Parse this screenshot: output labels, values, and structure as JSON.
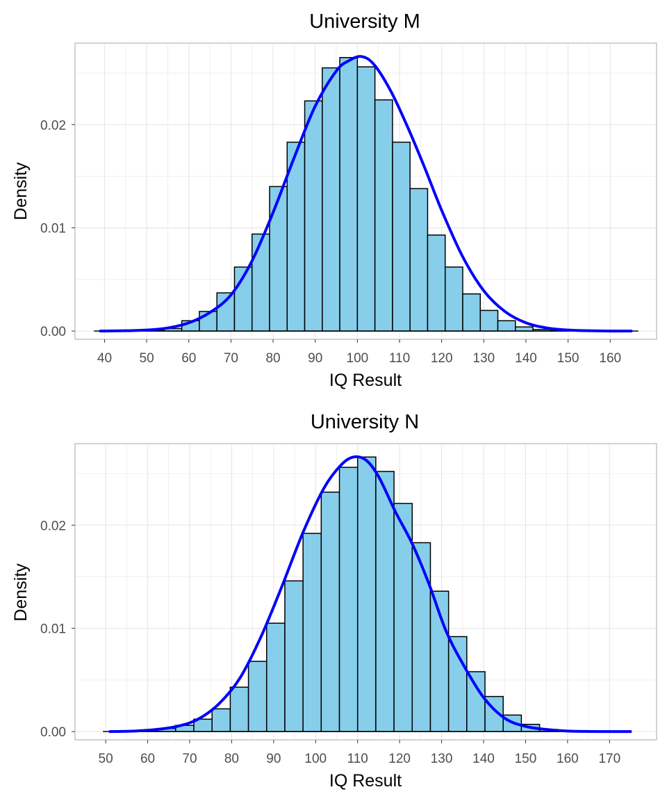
{
  "colors": {
    "bar_fill": "#87ceeb",
    "bar_stroke": "#000000",
    "density_line": "#0000ff",
    "grid": "#e6e6e6",
    "panel_border": "#b3b3b3",
    "tick_text": "#4d4d4d"
  },
  "chart_data": [
    {
      "type": "bar",
      "subtype": "histogram-with-density",
      "title": "University M",
      "xlabel": "IQ Result",
      "ylabel": "Density",
      "xlim": [
        33,
        171
      ],
      "ylim": [
        -0.0008,
        0.0279
      ],
      "x_ticks": [
        40,
        50,
        60,
        70,
        80,
        90,
        100,
        110,
        120,
        130,
        140,
        150,
        160
      ],
      "x_tick_labels": [
        "40",
        "50",
        "60",
        "70",
        "80",
        "90",
        "100",
        "110",
        "120",
        "130",
        "140",
        "150",
        "160"
      ],
      "y_ticks": [
        0,
        0.01,
        0.02
      ],
      "y_tick_labels": [
        "0.00",
        "0.01",
        "0.02"
      ],
      "grid": true,
      "bins": {
        "left_edges": [
          37.5,
          41.667,
          45.833,
          50.0,
          54.167,
          58.333,
          62.5,
          66.667,
          70.833,
          75.0,
          79.167,
          83.333,
          87.5,
          91.667,
          95.833,
          100.0,
          104.167,
          108.333,
          112.5,
          116.667,
          120.833,
          125.0,
          129.167,
          133.333,
          137.5,
          141.667,
          145.833,
          150.0,
          154.167,
          158.333,
          162.5
        ],
        "width": 4.1667,
        "values": [
          0.0,
          0.0,
          2e-05,
          8e-05,
          0.00025,
          0.001,
          0.0019,
          0.0037,
          0.0062,
          0.0094,
          0.014,
          0.0183,
          0.0223,
          0.0255,
          0.0265,
          0.0256,
          0.0224,
          0.0183,
          0.0138,
          0.0093,
          0.0062,
          0.0036,
          0.002,
          0.001,
          0.0004,
          0.00015,
          5e-05,
          0.0,
          0.0,
          0.0,
          0.0
        ]
      },
      "density_curve": {
        "name": "density",
        "x": [
          39,
          45,
          50,
          55,
          60,
          65,
          70,
          75,
          80,
          85,
          90,
          95,
          98,
          101,
          104,
          108,
          112,
          116,
          120,
          125,
          130,
          135,
          140,
          145,
          150,
          155,
          160,
          165
        ],
        "values": [
          0.0,
          3e-05,
          0.0001,
          0.0003,
          0.0008,
          0.0018,
          0.0035,
          0.0068,
          0.0115,
          0.0168,
          0.0218,
          0.0252,
          0.0262,
          0.0266,
          0.0258,
          0.0232,
          0.0197,
          0.0158,
          0.0117,
          0.0072,
          0.0039,
          0.0019,
          0.0008,
          0.0003,
          0.0001,
          3e-05,
          0.0,
          0.0
        ]
      }
    },
    {
      "type": "bar",
      "subtype": "histogram-with-density",
      "title": "University N",
      "xlabel": "IQ Result",
      "ylabel": "Density",
      "xlim": [
        42.7,
        181.2
      ],
      "ylim": [
        -0.0008,
        0.0279
      ],
      "x_ticks": [
        50,
        60,
        70,
        80,
        90,
        100,
        110,
        120,
        130,
        140,
        150,
        160,
        170
      ],
      "x_tick_labels": [
        "50",
        "60",
        "70",
        "80",
        "90",
        "100",
        "110",
        "120",
        "130",
        "140",
        "150",
        "160",
        "170"
      ],
      "y_ticks": [
        0,
        0.01,
        0.02
      ],
      "y_tick_labels": [
        "0.00",
        "0.01",
        "0.02"
      ],
      "grid": true,
      "bins": {
        "left_edges": [
          49.333,
          53.667,
          58.0,
          62.333,
          66.667,
          71.0,
          75.333,
          79.667,
          84.0,
          88.333,
          92.667,
          97.0,
          101.333,
          105.667,
          110.0,
          114.333,
          118.667,
          123.0,
          127.333,
          131.667,
          136.0,
          140.333,
          144.667,
          149.0,
          153.333,
          157.667,
          162.0,
          166.333,
          170.667
        ],
        "width": 4.3333,
        "values": [
          0.0,
          3e-05,
          0.0001,
          0.0003,
          0.0006,
          0.0012,
          0.0022,
          0.0043,
          0.0068,
          0.0105,
          0.0146,
          0.0192,
          0.0232,
          0.0256,
          0.0266,
          0.0252,
          0.0221,
          0.0183,
          0.0136,
          0.0092,
          0.0058,
          0.0034,
          0.0016,
          0.0007,
          0.0002,
          6e-05,
          2e-05,
          0.0,
          0.0
        ]
      },
      "density_curve": {
        "name": "density",
        "x": [
          51,
          57,
          62,
          67,
          72,
          77,
          82,
          87,
          92,
          97,
          102,
          106,
          109,
          112,
          115,
          119,
          123,
          127,
          131,
          135,
          140,
          145,
          150,
          155,
          160,
          165,
          170,
          175
        ],
        "values": [
          0.0,
          5e-05,
          0.0002,
          0.0005,
          0.0012,
          0.0027,
          0.0052,
          0.0092,
          0.0141,
          0.0193,
          0.0236,
          0.0258,
          0.0266,
          0.0263,
          0.0247,
          0.0213,
          0.0182,
          0.0143,
          0.0098,
          0.0066,
          0.0033,
          0.0013,
          0.0005,
          0.0002,
          5e-05,
          1e-05,
          0.0,
          0.0
        ]
      }
    }
  ]
}
